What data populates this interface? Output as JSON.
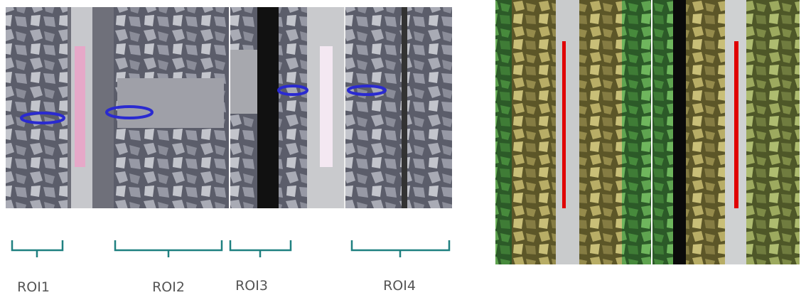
{
  "labels": [
    "ROI1",
    "ROI2",
    "ROI3",
    "ROI4"
  ]
}
